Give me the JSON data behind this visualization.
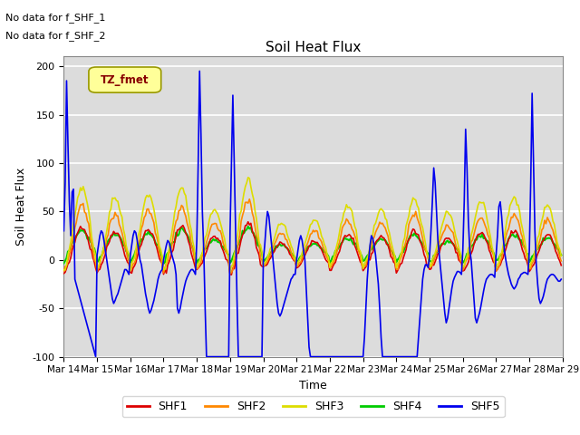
{
  "title": "Soil Heat Flux",
  "xlabel": "Time",
  "ylabel": "Soil Heat Flux",
  "ylim": [
    -100,
    210
  ],
  "xlim": [
    0,
    360
  ],
  "bg_color": "#dcdcdc",
  "fig_color": "#ffffff",
  "annotations": [
    "No data for f_SHF_1",
    "No data for f_SHF_2"
  ],
  "tz_label": "TZ_fmet",
  "x_ticks": [
    0,
    24,
    48,
    72,
    96,
    120,
    144,
    168,
    192,
    216,
    240,
    264,
    288,
    312,
    336,
    360
  ],
  "x_tick_labels": [
    "Mar 14",
    "Mar 15",
    "Mar 16",
    "Mar 17",
    "Mar 18",
    "Mar 19",
    "Mar 20",
    "Mar 21",
    "Mar 22",
    "Mar 23",
    "Mar 24",
    "Mar 25",
    "Mar 26",
    "Mar 27",
    "Mar 28",
    "Mar 29"
  ],
  "yticks": [
    -100,
    -50,
    0,
    50,
    100,
    150,
    200
  ],
  "series": {
    "SHF1": {
      "color": "#dd0000",
      "lw": 1.2
    },
    "SHF2": {
      "color": "#ff8800",
      "lw": 1.2
    },
    "SHF3": {
      "color": "#dddd00",
      "lw": 1.2
    },
    "SHF4": {
      "color": "#00cc00",
      "lw": 1.5
    },
    "SHF5": {
      "color": "#0000ee",
      "lw": 1.2
    }
  },
  "legend_entries": [
    {
      "label": "SHF1",
      "color": "#dd0000"
    },
    {
      "label": "SHF2",
      "color": "#ff8800"
    },
    {
      "label": "SHF3",
      "color": "#dddd00"
    },
    {
      "label": "SHF4",
      "color": "#00cc00"
    },
    {
      "label": "SHF5",
      "color": "#0000ee"
    }
  ]
}
